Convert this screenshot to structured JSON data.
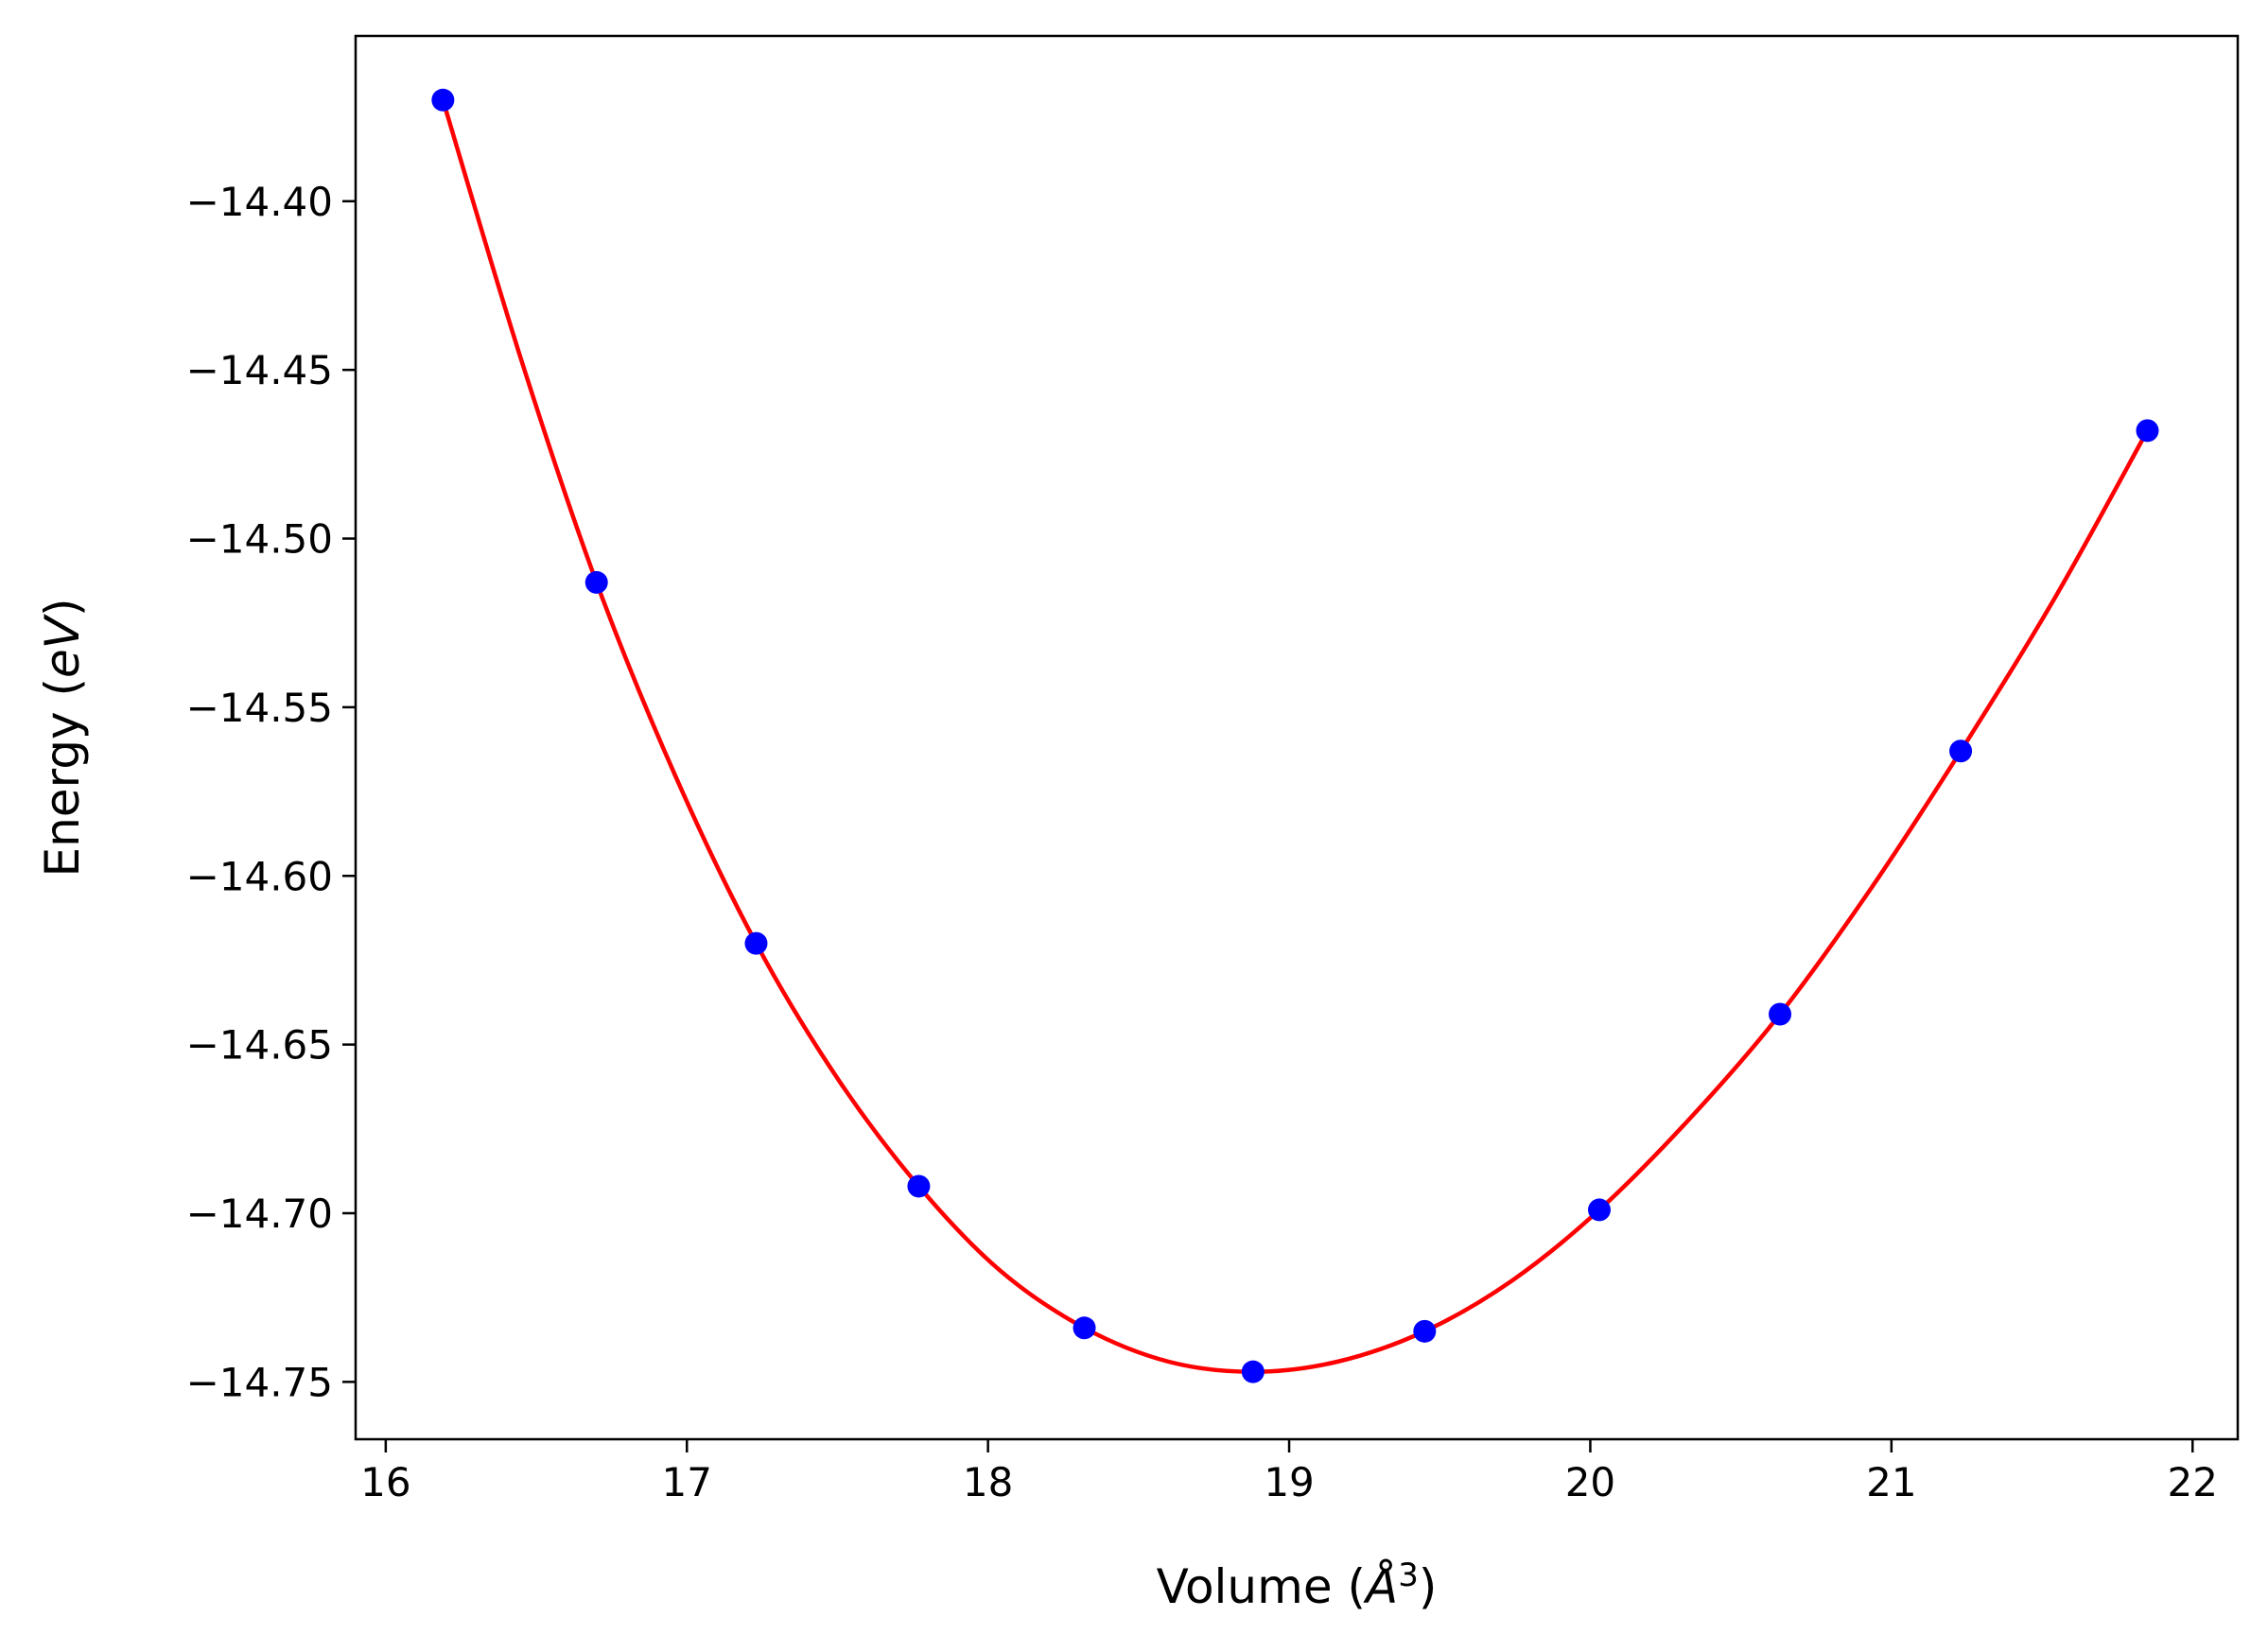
{
  "chart_data": {
    "type": "scatter",
    "title": "",
    "xlabel": "Volume (",
    "xlabel_unit": "Å",
    "xlabel_exp": "3",
    "xlabel_close": ")",
    "ylabel": "Energy (",
    "ylabel_unit": "eV",
    "ylabel_close": ")",
    "xlim": [
      15.9,
      22.15
    ],
    "ylim": [
      -14.767,
      -14.351
    ],
    "xticks": [
      16,
      17,
      18,
      19,
      20,
      21,
      22
    ],
    "yticks": [
      -14.4,
      -14.45,
      -14.5,
      -14.55,
      -14.6,
      -14.65,
      -14.7,
      -14.75
    ],
    "xtick_labels": [
      "16",
      "17",
      "18",
      "19",
      "20",
      "21",
      "22"
    ],
    "ytick_labels": [
      "−14.40",
      "−14.45",
      "−14.50",
      "−14.55",
      "−14.60",
      "−14.65",
      "−14.70",
      "−14.75"
    ],
    "grid": false,
    "series": [
      {
        "kind": "points",
        "color": "#0000ff",
        "x": [
          16.19,
          16.7,
          17.23,
          17.77,
          18.32,
          18.88,
          19.45,
          20.03,
          20.63,
          21.23,
          21.85
        ],
        "y": [
          -14.37,
          -14.513,
          -14.62,
          -14.692,
          -14.734,
          -14.747,
          -14.735,
          -14.699,
          -14.641,
          -14.563,
          -14.468
        ]
      },
      {
        "kind": "fit-line",
        "color": "#ff0000",
        "x": [
          16.19,
          16.45,
          16.7,
          16.96,
          17.23,
          17.5,
          17.77,
          18.04,
          18.32,
          18.6,
          18.88,
          19.16,
          19.45,
          19.74,
          20.03,
          20.33,
          20.63,
          20.93,
          21.23,
          21.54,
          21.85
        ],
        "y": [
          -14.37,
          -14.447,
          -14.513,
          -14.57,
          -14.62,
          -14.66,
          -14.692,
          -14.717,
          -14.734,
          -14.744,
          -14.747,
          -14.744,
          -14.735,
          -14.72,
          -14.699,
          -14.672,
          -14.641,
          -14.604,
          -14.563,
          -14.518,
          -14.468
        ]
      }
    ]
  }
}
